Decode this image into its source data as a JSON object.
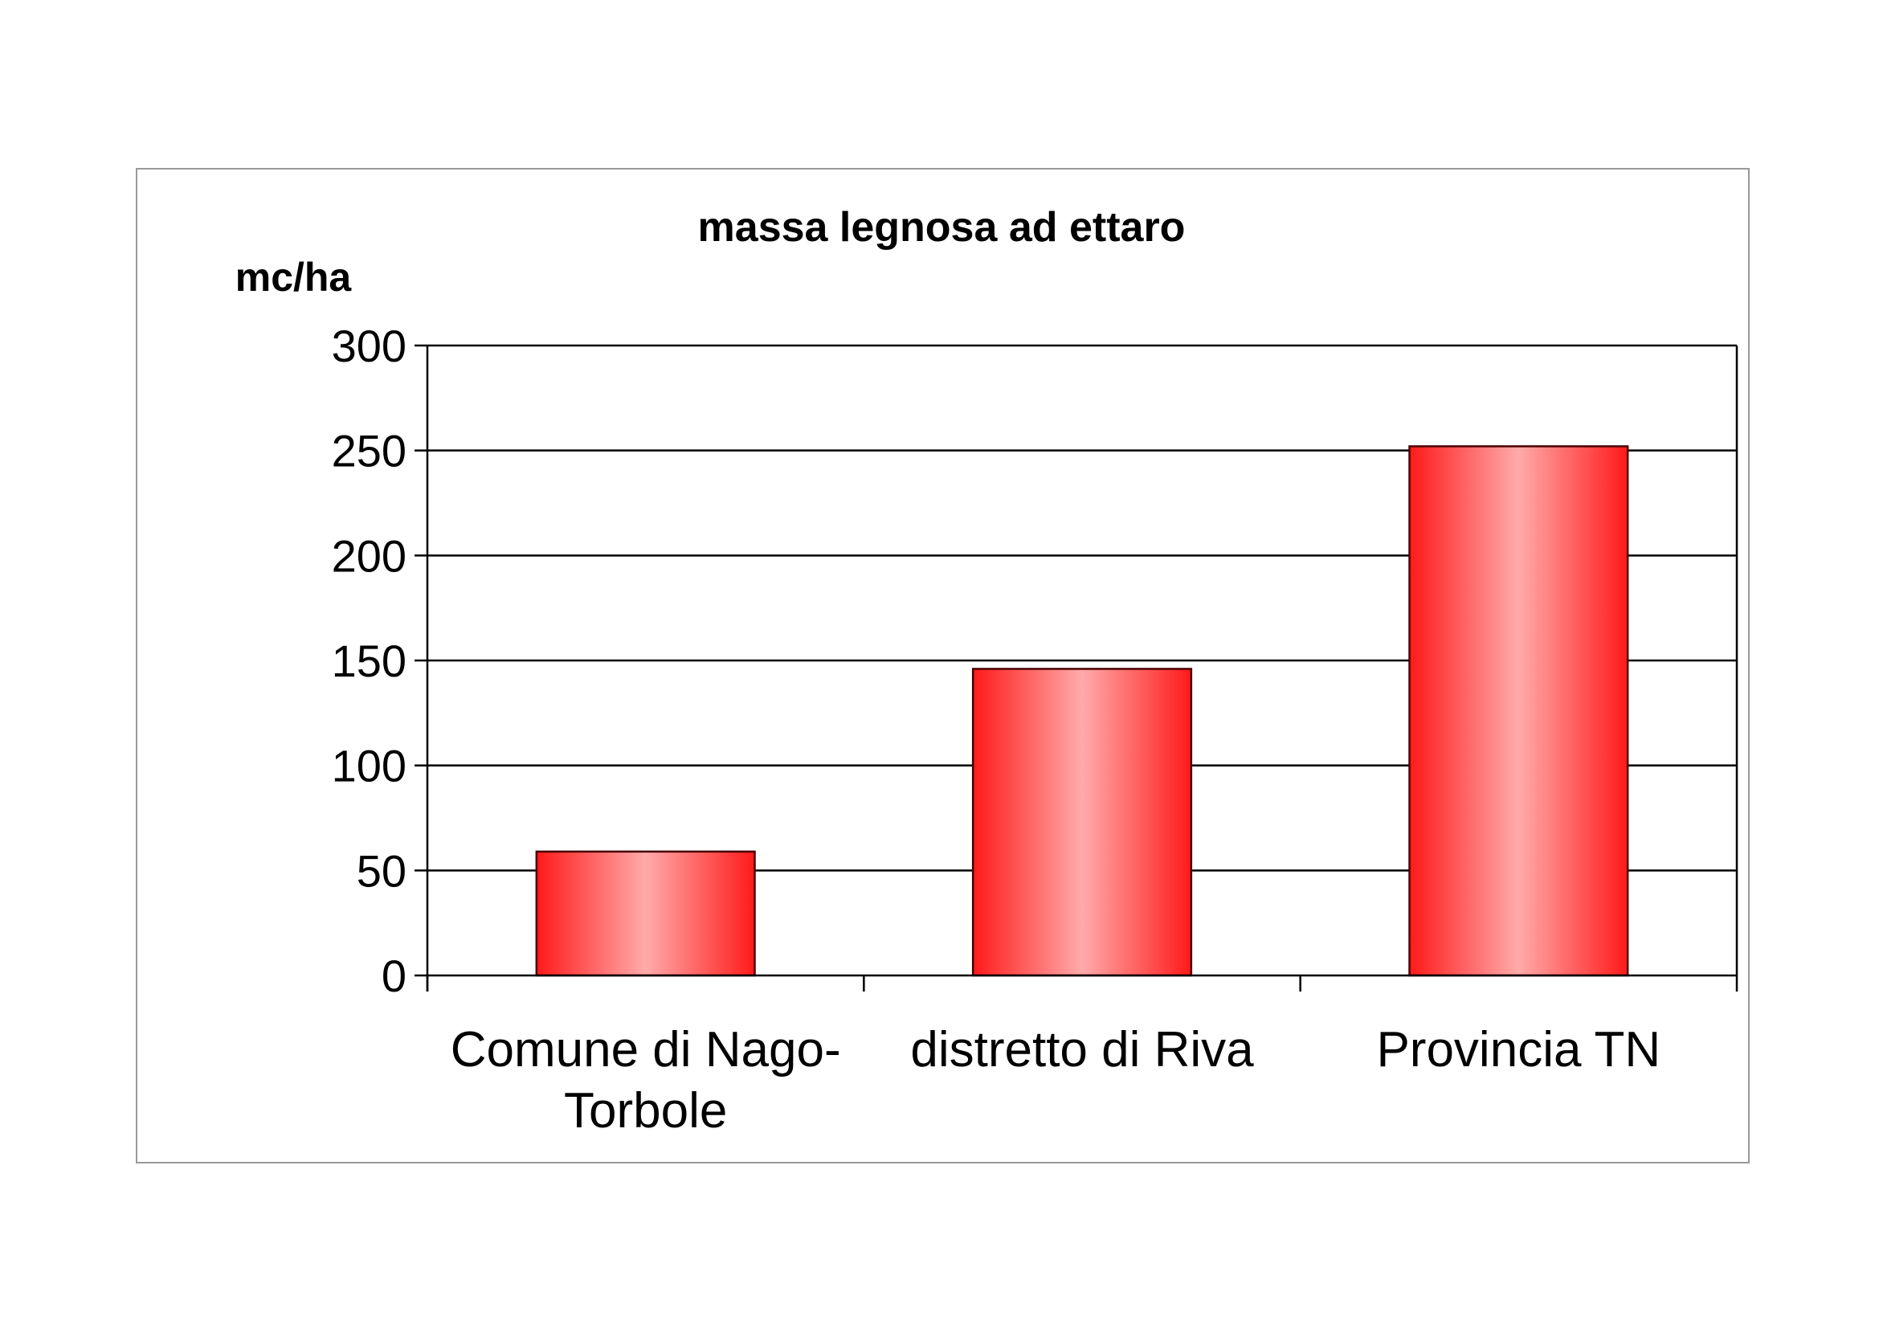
{
  "chart_data": {
    "type": "bar",
    "title": "massa legnosa ad ettaro",
    "ylabel": "mc/ha",
    "xlabel": "",
    "categories": [
      [
        "Comune di Nago-",
        "Torbole"
      ],
      [
        "distretto di Riva"
      ],
      [
        "Provincia TN"
      ]
    ],
    "values": [
      59,
      146,
      252
    ],
    "ylim": [
      0,
      300
    ],
    "yticks": [
      0,
      50,
      100,
      150,
      200,
      250,
      300
    ],
    "ytick_labels": [
      "0",
      "50",
      "100",
      "150",
      "200",
      "250",
      "300"
    ],
    "grid": true,
    "legend": "none",
    "colors": {
      "bar_edge": "#ff1a1a",
      "bar_center": "#ffaaaa",
      "bar_stroke": "#4a0000",
      "frame": "#999999",
      "grid": "#000000"
    }
  }
}
